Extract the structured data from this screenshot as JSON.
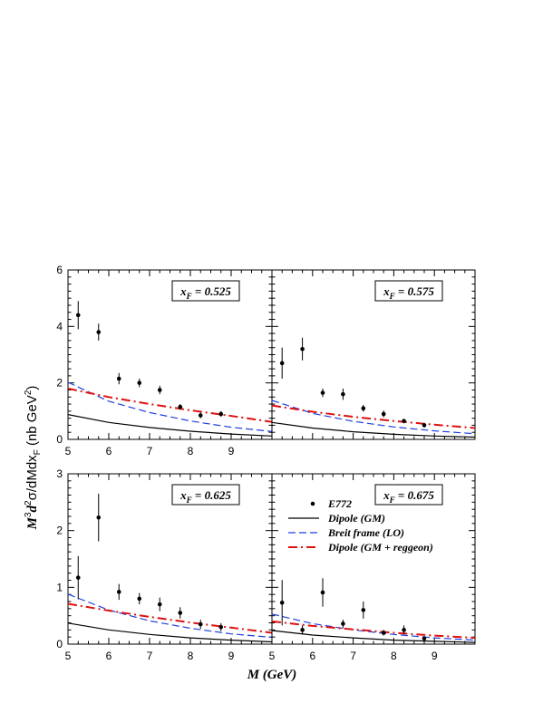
{
  "chart_data": [
    {
      "type": "scatter",
      "panel_label": "x_F = 0.525",
      "label_sym": "x",
      "label_sub": "F",
      "label_value": " = 0.525",
      "xlim": [
        5,
        10
      ],
      "ylim": [
        0,
        6
      ],
      "xticks": [
        5,
        6,
        7,
        8,
        9
      ],
      "yticks": [
        0,
        2,
        4,
        6
      ],
      "data": {
        "name": "E772",
        "x": [
          5.25,
          5.75,
          6.25,
          6.75,
          7.25,
          7.75,
          8.25,
          8.75
        ],
        "y": [
          4.4,
          3.8,
          2.15,
          2.0,
          1.75,
          1.15,
          0.85,
          0.9
        ],
        "err": [
          0.5,
          0.3,
          0.2,
          0.15,
          0.15,
          0.1,
          0.1,
          0.1
        ]
      },
      "curves": [
        {
          "name": "Dipole  (GM)",
          "x": [
            5,
            6,
            7,
            8,
            9,
            10
          ],
          "y": [
            0.88,
            0.6,
            0.42,
            0.29,
            0.19,
            0.12
          ]
        },
        {
          "name": "Breit frame (LO)",
          "x": [
            5,
            6,
            7,
            8,
            9,
            10
          ],
          "y": [
            2.02,
            1.35,
            0.95,
            0.65,
            0.43,
            0.28
          ]
        },
        {
          "name": "Dipole  (GM + reggeon)",
          "x": [
            5,
            6,
            7,
            8,
            9,
            10
          ],
          "y": [
            1.8,
            1.5,
            1.25,
            1.03,
            0.83,
            0.62
          ]
        }
      ]
    },
    {
      "type": "scatter",
      "panel_label": "x_F = 0.575",
      "label_sym": "x",
      "label_sub": "F",
      "label_value": " = 0.575",
      "xlim": [
        5,
        10
      ],
      "ylim": [
        0,
        6
      ],
      "data": {
        "name": "E772",
        "x": [
          5.25,
          5.75,
          6.25,
          6.75,
          7.25,
          7.75,
          8.25,
          8.75
        ],
        "y": [
          2.7,
          3.2,
          1.65,
          1.6,
          1.1,
          0.9,
          0.65,
          0.5
        ],
        "err": [
          0.55,
          0.4,
          0.15,
          0.2,
          0.12,
          0.12,
          0.08,
          0.08
        ]
      },
      "curves": [
        {
          "name": "Dipole  (GM)",
          "x": [
            5,
            6,
            7,
            8,
            9,
            10
          ],
          "y": [
            0.6,
            0.4,
            0.27,
            0.18,
            0.12,
            0.08
          ]
        },
        {
          "name": "Breit frame (LO)",
          "x": [
            5,
            6,
            7,
            8,
            9,
            10
          ],
          "y": [
            1.38,
            0.92,
            0.64,
            0.44,
            0.3,
            0.2
          ]
        },
        {
          "name": "Dipole  (GM + reggeon)",
          "x": [
            5,
            6,
            7,
            8,
            9,
            10
          ],
          "y": [
            1.2,
            0.98,
            0.8,
            0.65,
            0.52,
            0.4
          ]
        }
      ]
    },
    {
      "type": "scatter",
      "panel_label": "x_F = 0.625",
      "label_sym": "x",
      "label_sub": "F",
      "label_value": " = 0.625",
      "xlim": [
        5,
        10
      ],
      "ylim": [
        0,
        3
      ],
      "xticks": [
        5,
        6,
        7,
        8,
        9
      ],
      "yticks": [
        0,
        1,
        2,
        3
      ],
      "data": {
        "name": "E772",
        "x": [
          5.25,
          5.75,
          6.25,
          6.75,
          7.25,
          7.75,
          8.25,
          8.75
        ],
        "y": [
          1.17,
          2.23,
          0.92,
          0.8,
          0.7,
          0.55,
          0.35,
          0.3
        ],
        "err": [
          0.38,
          0.42,
          0.14,
          0.1,
          0.12,
          0.1,
          0.08,
          0.07
        ]
      },
      "curves": [
        {
          "name": "Dipole  (GM)",
          "x": [
            5,
            6,
            7,
            8,
            9,
            10
          ],
          "y": [
            0.37,
            0.25,
            0.17,
            0.11,
            0.07,
            0.04
          ]
        },
        {
          "name": "Breit frame (LO)",
          "x": [
            5,
            6,
            7,
            8,
            9,
            10
          ],
          "y": [
            0.88,
            0.6,
            0.41,
            0.28,
            0.18,
            0.12
          ]
        },
        {
          "name": "Dipole  (GM + reggeon)",
          "x": [
            5,
            6,
            7,
            8,
            9,
            10
          ],
          "y": [
            0.71,
            0.59,
            0.48,
            0.38,
            0.29,
            0.2
          ]
        }
      ]
    },
    {
      "type": "scatter",
      "panel_label": "x_F = 0.675",
      "label_sym": "x",
      "label_sub": "F",
      "label_value": " = 0.675",
      "xlim": [
        5,
        10
      ],
      "ylim": [
        0,
        3
      ],
      "xticks": [
        5,
        6,
        7,
        8,
        9
      ],
      "data": {
        "name": "E772",
        "x": [
          5.25,
          5.75,
          6.25,
          6.75,
          7.25,
          7.75,
          8.25,
          8.75
        ],
        "y": [
          0.73,
          0.25,
          0.91,
          0.36,
          0.6,
          0.2,
          0.25,
          0.1
        ],
        "err": [
          0.4,
          0.08,
          0.25,
          0.07,
          0.15,
          0.05,
          0.08,
          0.04
        ]
      },
      "curves": [
        {
          "name": "Dipole  (GM)",
          "x": [
            5,
            6,
            7,
            8,
            9,
            10
          ],
          "y": [
            0.24,
            0.16,
            0.11,
            0.07,
            0.05,
            0.03
          ]
        },
        {
          "name": "Breit frame (LO)",
          "x": [
            5,
            6,
            7,
            8,
            9,
            10
          ],
          "y": [
            0.53,
            0.36,
            0.25,
            0.17,
            0.11,
            0.07
          ]
        },
        {
          "name": "Dipole  (GM + reggeon)",
          "x": [
            5,
            6,
            7,
            8,
            9,
            10
          ],
          "y": [
            0.4,
            0.32,
            0.26,
            0.2,
            0.15,
            0.11
          ]
        }
      ]
    }
  ],
  "axes": {
    "xlabel": "M (GeV)",
    "ylabel_sym": "M",
    "ylabel_sup": "3",
    "ylabel_d": "d",
    "ylabel_sup2": "2",
    "ylabel_rest": "σ/dMdx",
    "ylabel_sub": "F",
    "ylabel_unit": " (nb GeV",
    "ylabel_unit_sup": "2",
    "ylabel_close": ")"
  },
  "legend": {
    "placement": "lower-right panel, upper area",
    "entries": [
      {
        "label": "E772",
        "style": "points"
      },
      {
        "label": "Dipole  (GM)",
        "style": "solid",
        "color": "#000000"
      },
      {
        "label": "Breit frame (LO)",
        "style": "dashed",
        "color": "#1f3fe0"
      },
      {
        "label": "Dipole  (GM + reggeon)",
        "style": "dash-dot",
        "color": "#e01010"
      }
    ]
  },
  "colors": {
    "dipole_gm": "#000000",
    "breit_lo": "#1f3fe0",
    "dipole_reggeon": "#e01010",
    "data": "#000000"
  }
}
